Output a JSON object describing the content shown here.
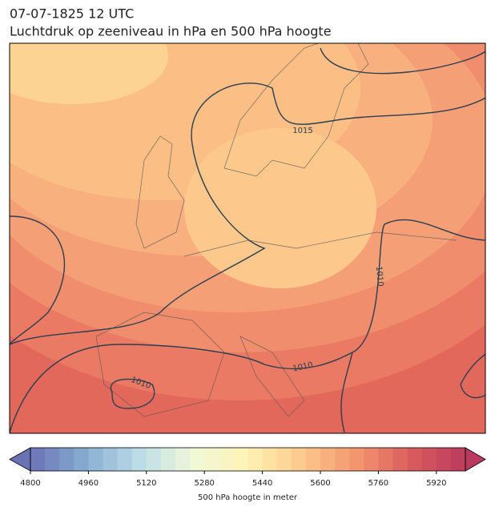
{
  "header": {
    "title": "07-07-1825 12 UTC",
    "subtitle": "Luchtdruk op zeeniveau in hPa en 500 hPa hoogte"
  },
  "map": {
    "contour_labels": [
      "1015",
      "1010",
      "1010",
      "1010"
    ]
  },
  "colorbar": {
    "label": "500 hPa hoogte in meter",
    "range": [
      4800,
      6000
    ],
    "step": 40,
    "ticks": [
      4800,
      4960,
      5120,
      5280,
      5440,
      5600,
      5760,
      5920
    ],
    "colors": [
      "#6a72b6",
      "#87acd0",
      "#bcdce8",
      "#f0f8d8",
      "#fef3b4",
      "#fcc88c",
      "#f3956e",
      "#db5c5e",
      "#b93a5e"
    ]
  }
}
